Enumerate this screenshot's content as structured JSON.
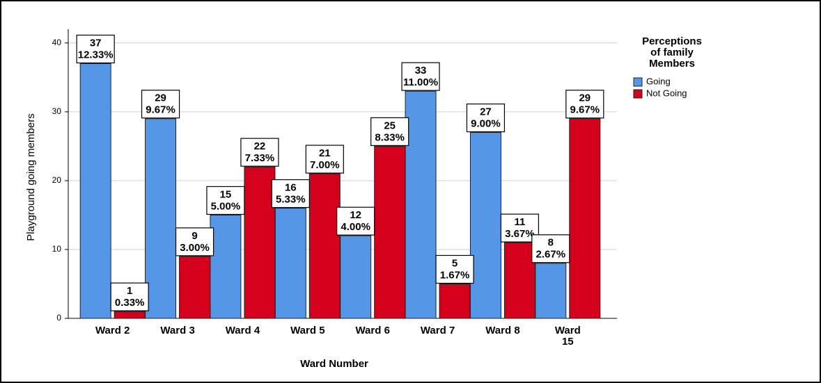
{
  "chart_data": {
    "type": "bar",
    "y_label": "Playground going members",
    "x_label": "Ward Number",
    "legend_title": "Perceptions of family Members",
    "categories": [
      "Ward 2",
      "Ward 3",
      "Ward 4",
      "Ward 5",
      "Ward 6",
      "Ward 7",
      "Ward 8",
      "Ward 15"
    ],
    "series": [
      {
        "name": "Going",
        "color": "#5596e6",
        "values": [
          37,
          29,
          15,
          16,
          12,
          33,
          27,
          8
        ],
        "percent_labels": [
          "12.33%",
          "9.67%",
          "5.00%",
          "5.33%",
          "4.00%",
          "11.00%",
          "9.00%",
          "2.67%"
        ]
      },
      {
        "name": "Not Going",
        "color": "#d5001c",
        "values": [
          1,
          9,
          22,
          21,
          25,
          5,
          11,
          29
        ],
        "percent_labels": [
          "0.33%",
          "3.00%",
          "7.33%",
          "7.00%",
          "8.33%",
          "1.67%",
          "3.67%",
          "9.67%"
        ]
      }
    ],
    "ylim": [
      0,
      42
    ],
    "yticks": [
      0,
      10,
      20,
      30,
      40
    ],
    "grid": true,
    "legend": "right"
  }
}
